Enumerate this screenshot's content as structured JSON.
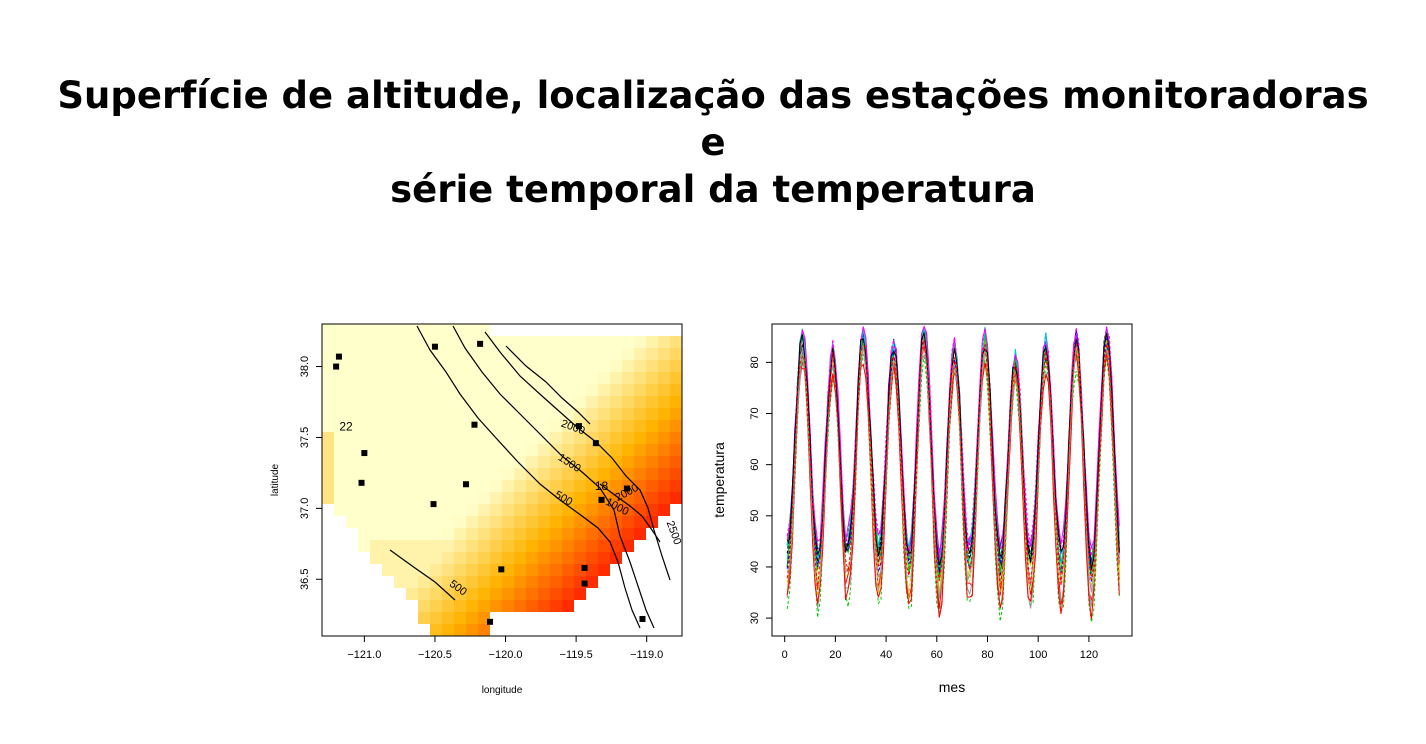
{
  "title": {
    "line1": "Superfície de altitude, localização das estações monitoradoras e",
    "line2": "série temporal da temperatura"
  },
  "chart_data": [
    {
      "type": "heatmap",
      "xlabel": "longitude",
      "ylabel": "latitude",
      "xlim": [
        -121.3,
        -118.75
      ],
      "ylim": [
        36.1,
        38.3
      ],
      "xticks": [
        -121.0,
        -120.5,
        -120.0,
        -119.5,
        -119.0
      ],
      "xtick_labels": [
        "−121.0",
        "−120.5",
        "−120.0",
        "−119.5",
        "−119.0"
      ],
      "yticks": [
        36.5,
        37.0,
        37.5,
        38.0
      ],
      "ytick_labels": [
        "36.5",
        "37.0",
        "37.5",
        "38.0"
      ],
      "colors": {
        "low": "#FFFFCC",
        "mid": "#FFB300",
        "high": "#FF2200"
      },
      "contour_labels": [
        {
          "text": "500",
          "lon": -120.35,
          "lat": 36.42,
          "angle": 36
        },
        {
          "text": "500",
          "lon": -119.6,
          "lat": 37.05,
          "angle": 30
        },
        {
          "text": "1000",
          "lon": -119.22,
          "lat": 36.99,
          "angle": 28
        },
        {
          "text": "1500",
          "lon": -119.56,
          "lat": 37.3,
          "angle": 33
        },
        {
          "text": "2000",
          "lon": -119.53,
          "lat": 37.55,
          "angle": 20
        },
        {
          "text": "2000",
          "lon": -119.13,
          "lat": 37.09,
          "angle": -28
        },
        {
          "text": "2500",
          "lon": -118.83,
          "lat": 36.82,
          "angle": 70
        }
      ],
      "stations": [
        {
          "lon": -121.18,
          "lat": 38.07
        },
        {
          "lon": -121.2,
          "lat": 38.0
        },
        {
          "lon": -120.5,
          "lat": 38.14
        },
        {
          "lon": -120.18,
          "lat": 38.16
        },
        {
          "lon": -120.22,
          "lat": 37.59
        },
        {
          "lon": -119.48,
          "lat": 37.58
        },
        {
          "lon": -119.36,
          "lat": 37.46
        },
        {
          "lon": -121.0,
          "lat": 37.39
        },
        {
          "lon": -121.02,
          "lat": 37.18
        },
        {
          "lon": -120.28,
          "lat": 37.17
        },
        {
          "lon": -120.51,
          "lat": 37.03
        },
        {
          "lon": -119.32,
          "lat": 37.06
        },
        {
          "lon": -119.14,
          "lat": 37.14
        },
        {
          "lon": -120.03,
          "lat": 36.57
        },
        {
          "lon": -119.44,
          "lat": 36.58
        },
        {
          "lon": -119.44,
          "lat": 36.47
        },
        {
          "lon": -120.11,
          "lat": 36.2
        },
        {
          "lon": -119.03,
          "lat": 36.22
        }
      ],
      "station_labels": [
        {
          "text": "22",
          "lon": -121.13,
          "lat": 37.55
        },
        {
          "text": "18",
          "lon": -119.32,
          "lat": 37.13
        }
      ]
    },
    {
      "type": "line",
      "xlabel": "mes",
      "ylabel": "temperatura",
      "xlim": [
        -5,
        137
      ],
      "ylim": [
        26.5,
        87.5
      ],
      "xticks": [
        0,
        20,
        40,
        60,
        80,
        100,
        120
      ],
      "yticks": [
        30,
        40,
        50,
        60,
        70,
        80
      ],
      "n_months": 132,
      "peaks": [
        84,
        81,
        85,
        83,
        86,
        82,
        84,
        80,
        83,
        84,
        85
      ],
      "troughs": [
        42,
        40,
        43,
        41,
        40,
        39,
        41,
        40,
        41,
        40,
        40
      ],
      "series_colors": [
        "#000000",
        "#FF0000",
        "#00CC00",
        "#0000FF",
        "#00CCCC",
        "#FF00FF",
        "#CCCC00",
        "#999999",
        "#000000",
        "#FF0000",
        "#00CC00",
        "#0000FF",
        "#00CCCC",
        "#FF00FF",
        "#CCCC00",
        "#999999",
        "#000000",
        "#FF0000"
      ],
      "series_offsets": [
        0,
        -5,
        -8,
        2,
        1,
        3,
        -2,
        -6,
        1,
        -7,
        0,
        -1,
        2,
        3,
        -4,
        -3,
        1,
        -2
      ]
    }
  ]
}
